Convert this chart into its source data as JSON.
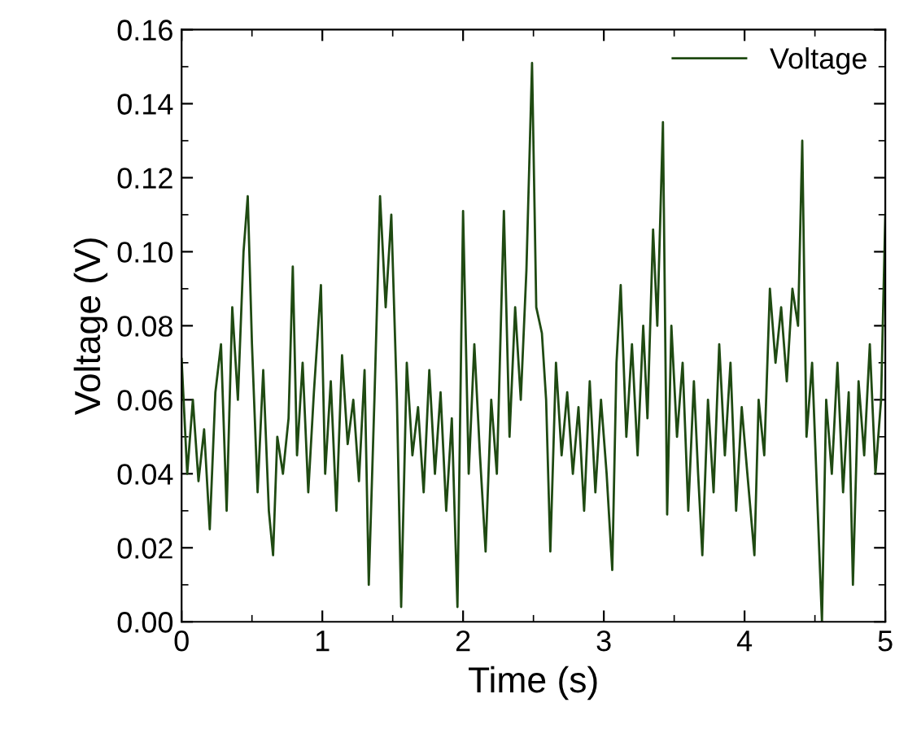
{
  "chart_data": {
    "type": "line",
    "xlabel": "Time (s)",
    "ylabel": "Voltage (V)",
    "xlim": [
      0,
      5
    ],
    "ylim": [
      0,
      0.16
    ],
    "xticks": [
      0,
      1,
      2,
      3,
      4,
      5
    ],
    "yticks": [
      {
        "value": 0,
        "label": "0.00"
      },
      {
        "value": 0.02,
        "label": "0.02"
      },
      {
        "value": 0.04,
        "label": "0.04"
      },
      {
        "value": 0.06,
        "label": "0.06"
      },
      {
        "value": 0.08,
        "label": "0.08"
      },
      {
        "value": 0.1,
        "label": "0.10"
      },
      {
        "value": 0.12,
        "label": "0.12"
      },
      {
        "value": 0.14,
        "label": "0.14"
      },
      {
        "value": 0.16,
        "label": "0.16"
      }
    ],
    "grid": false,
    "legend": "top right",
    "marker": "none",
    "line_style": "solid",
    "series": [
      {
        "name": "Voltage",
        "color": "#1f4a12",
        "x": [
          0.0,
          0.04,
          0.08,
          0.12,
          0.16,
          0.2,
          0.24,
          0.28,
          0.32,
          0.36,
          0.4,
          0.44,
          0.47,
          0.5,
          0.54,
          0.58,
          0.62,
          0.65,
          0.68,
          0.72,
          0.76,
          0.79,
          0.82,
          0.86,
          0.9,
          0.94,
          0.99,
          1.02,
          1.06,
          1.1,
          1.14,
          1.18,
          1.22,
          1.26,
          1.3,
          1.33,
          1.37,
          1.41,
          1.45,
          1.49,
          1.53,
          1.56,
          1.6,
          1.64,
          1.68,
          1.72,
          1.76,
          1.8,
          1.84,
          1.88,
          1.92,
          1.96,
          2.0,
          2.04,
          2.08,
          2.12,
          2.16,
          2.2,
          2.24,
          2.29,
          2.33,
          2.37,
          2.41,
          2.45,
          2.49,
          2.52,
          2.56,
          2.59,
          2.62,
          2.66,
          2.7,
          2.74,
          2.78,
          2.82,
          2.86,
          2.9,
          2.94,
          2.98,
          3.02,
          3.06,
          3.09,
          3.12,
          3.16,
          3.2,
          3.24,
          3.28,
          3.31,
          3.35,
          3.38,
          3.42,
          3.45,
          3.48,
          3.52,
          3.56,
          3.6,
          3.64,
          3.67,
          3.7,
          3.74,
          3.78,
          3.82,
          3.86,
          3.9,
          3.94,
          3.98,
          4.02,
          4.07,
          4.1,
          4.14,
          4.18,
          4.22,
          4.26,
          4.3,
          4.34,
          4.38,
          4.41,
          4.44,
          4.48,
          4.52,
          4.55,
          4.58,
          4.62,
          4.66,
          4.7,
          4.74,
          4.77,
          4.81,
          4.85,
          4.89,
          4.93,
          4.97,
          5.0
        ],
        "values": [
          0.071,
          0.04,
          0.06,
          0.038,
          0.052,
          0.025,
          0.062,
          0.075,
          0.03,
          0.085,
          0.06,
          0.1,
          0.115,
          0.075,
          0.035,
          0.068,
          0.03,
          0.018,
          0.05,
          0.04,
          0.055,
          0.096,
          0.045,
          0.07,
          0.035,
          0.062,
          0.091,
          0.04,
          0.065,
          0.03,
          0.072,
          0.048,
          0.06,
          0.038,
          0.068,
          0.01,
          0.06,
          0.115,
          0.085,
          0.11,
          0.06,
          0.004,
          0.07,
          0.045,
          0.058,
          0.035,
          0.068,
          0.04,
          0.062,
          0.03,
          0.055,
          0.004,
          0.111,
          0.04,
          0.075,
          0.045,
          0.019,
          0.06,
          0.04,
          0.111,
          0.05,
          0.085,
          0.06,
          0.095,
          0.151,
          0.085,
          0.078,
          0.06,
          0.019,
          0.07,
          0.045,
          0.062,
          0.04,
          0.058,
          0.03,
          0.065,
          0.035,
          0.06,
          0.04,
          0.014,
          0.07,
          0.091,
          0.05,
          0.075,
          0.045,
          0.08,
          0.055,
          0.106,
          0.08,
          0.135,
          0.029,
          0.08,
          0.05,
          0.07,
          0.03,
          0.065,
          0.04,
          0.018,
          0.06,
          0.035,
          0.075,
          0.045,
          0.07,
          0.03,
          0.058,
          0.04,
          0.018,
          0.06,
          0.045,
          0.09,
          0.07,
          0.085,
          0.065,
          0.09,
          0.08,
          0.13,
          0.05,
          0.07,
          0.03,
          0.0,
          0.06,
          0.04,
          0.07,
          0.035,
          0.062,
          0.01,
          0.065,
          0.045,
          0.075,
          0.04,
          0.06,
          0.11
        ]
      }
    ]
  }
}
